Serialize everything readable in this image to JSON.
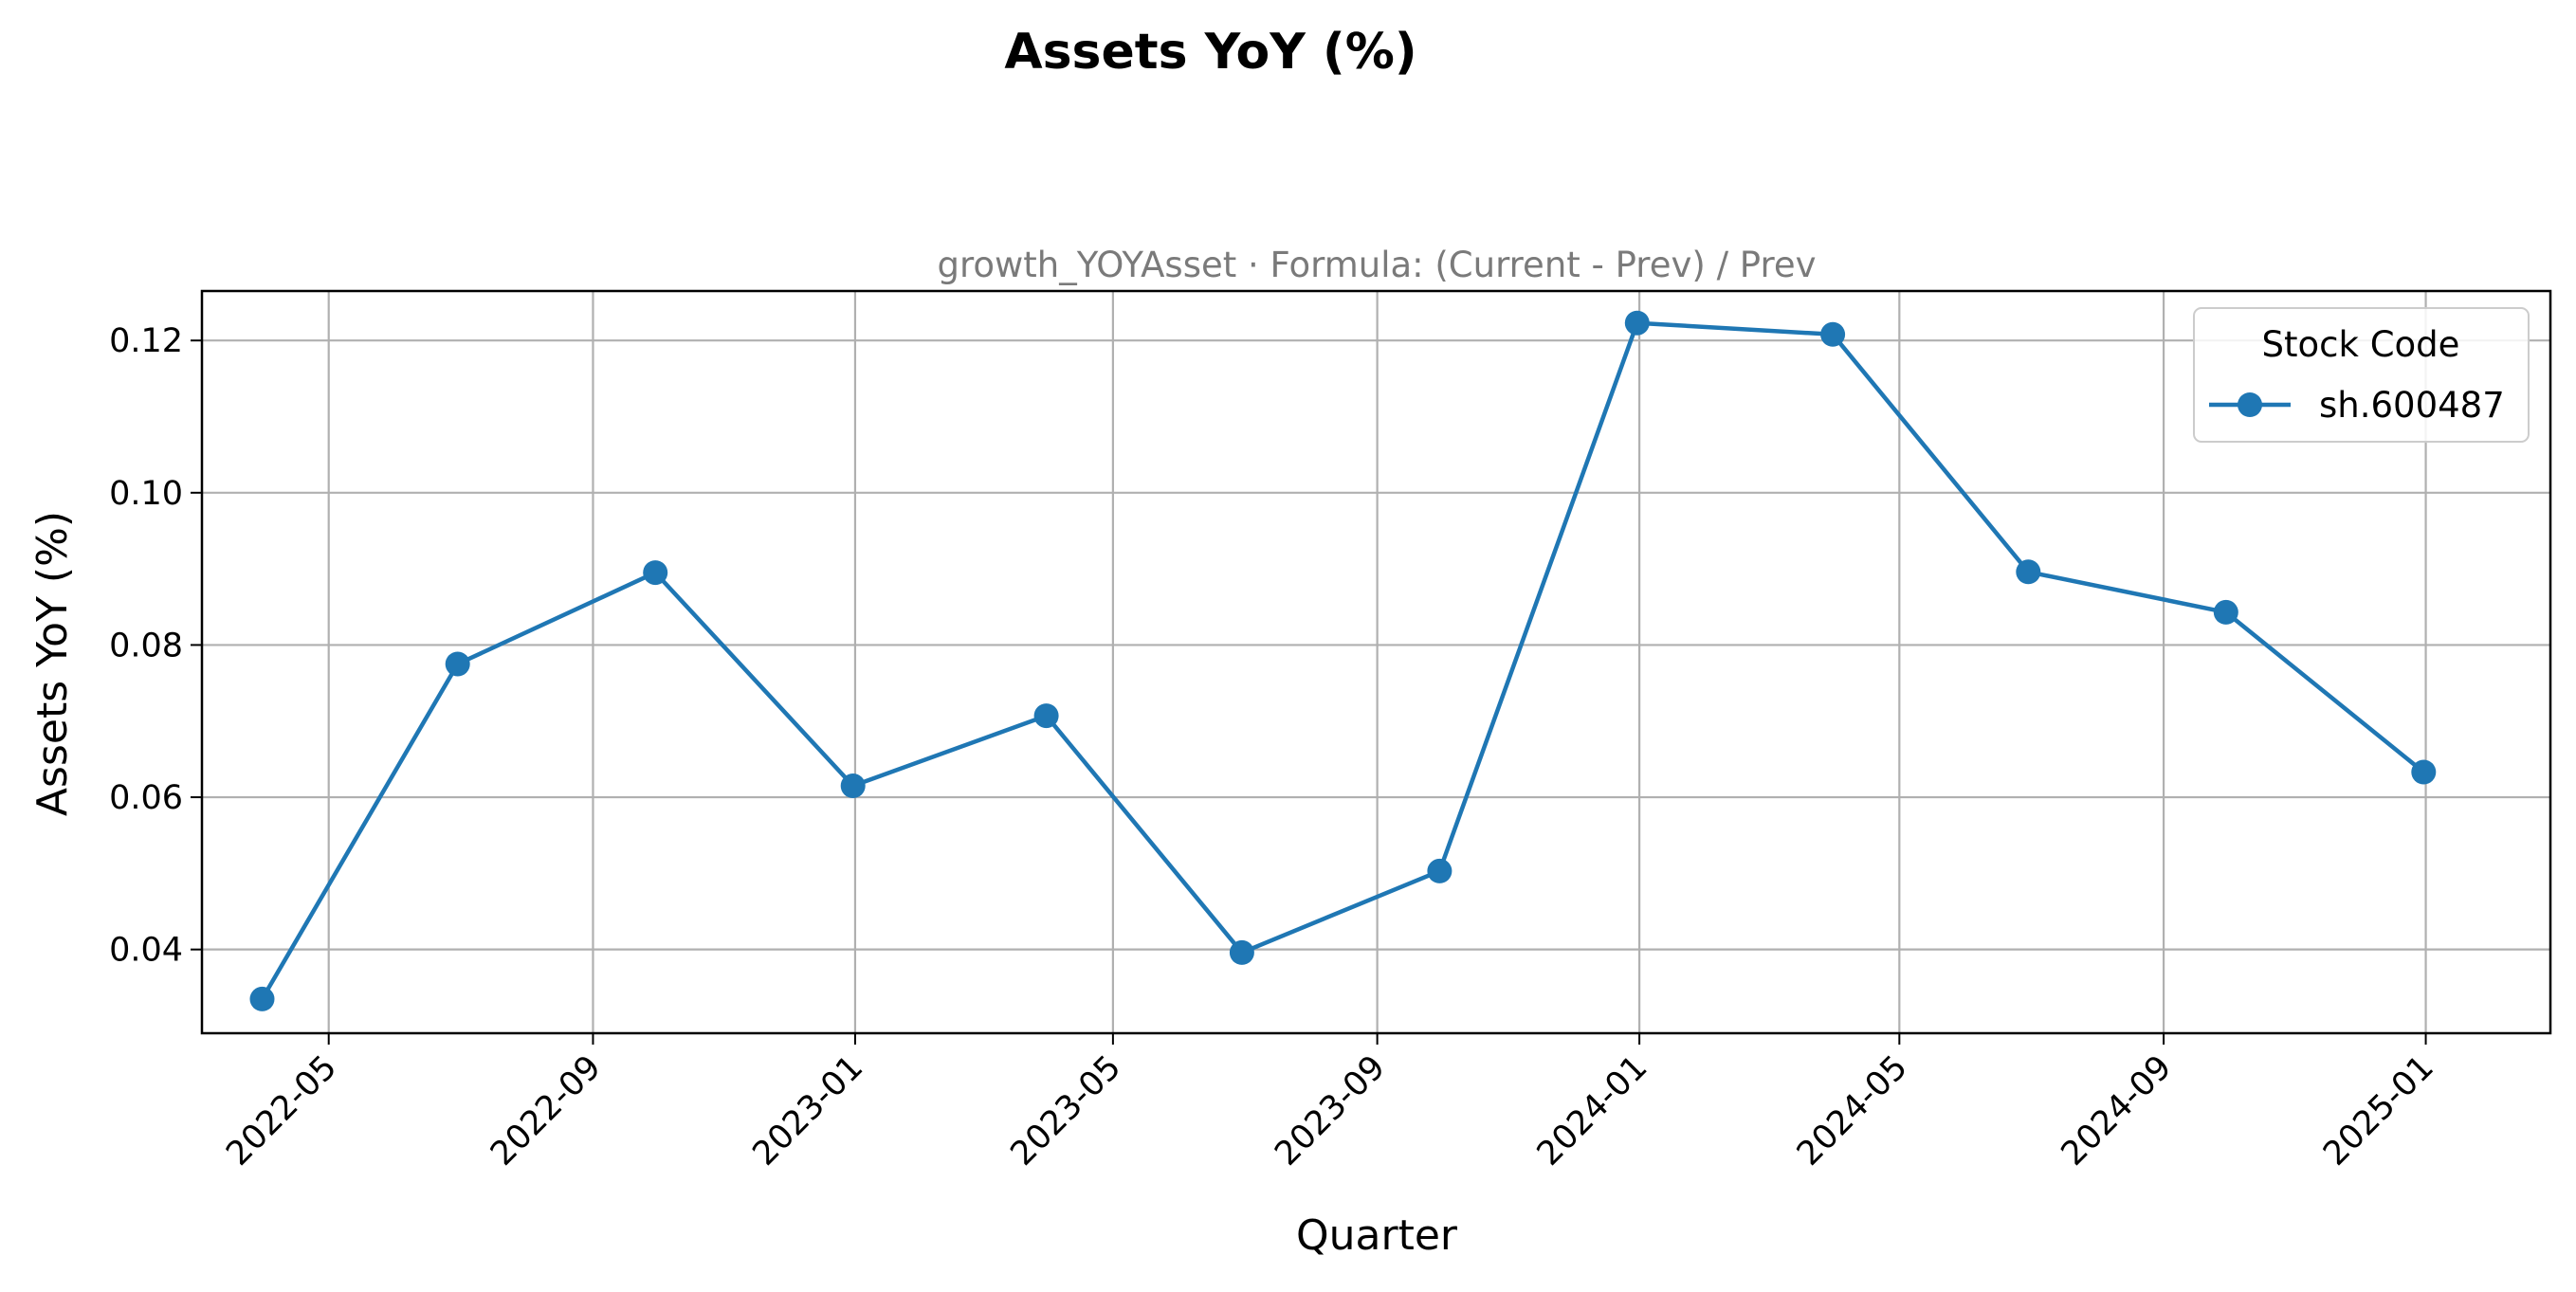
{
  "chart_data": {
    "type": "line",
    "title": "Assets YoY (%)",
    "subtitle": "growth_YOYAsset · Formula: (Current - Prev) / Prev",
    "xlabel": "Quarter",
    "ylabel": "Assets YoY (%)",
    "x_tick_labels": [
      "2022-05",
      "2022-09",
      "2023-01",
      "2023-05",
      "2023-09",
      "2024-01",
      "2024-05",
      "2024-09",
      "2025-01"
    ],
    "y_tick_labels": [
      "0.04",
      "0.06",
      "0.08",
      "0.10",
      "0.12"
    ],
    "xlim": [
      "2022-03-03",
      "2025-02-28"
    ],
    "ylim": [
      0.029,
      0.1265
    ],
    "grid": true,
    "legend": {
      "title": "Stock Code",
      "position": "top-right"
    },
    "series": [
      {
        "name": "sh.600487",
        "color": "#1f77b4",
        "marker": "circle",
        "x": [
          "2022-03-31",
          "2022-06-30",
          "2022-09-30",
          "2022-12-31",
          "2023-03-31",
          "2023-06-30",
          "2023-09-30",
          "2023-12-31",
          "2024-03-31",
          "2024-06-30",
          "2024-09-30",
          "2024-12-31"
        ],
        "y": [
          0.0335,
          0.0775,
          0.0895,
          0.0615,
          0.0707,
          0.0396,
          0.0503,
          0.1223,
          0.1208,
          0.0896,
          0.0843,
          0.0633
        ]
      }
    ]
  }
}
